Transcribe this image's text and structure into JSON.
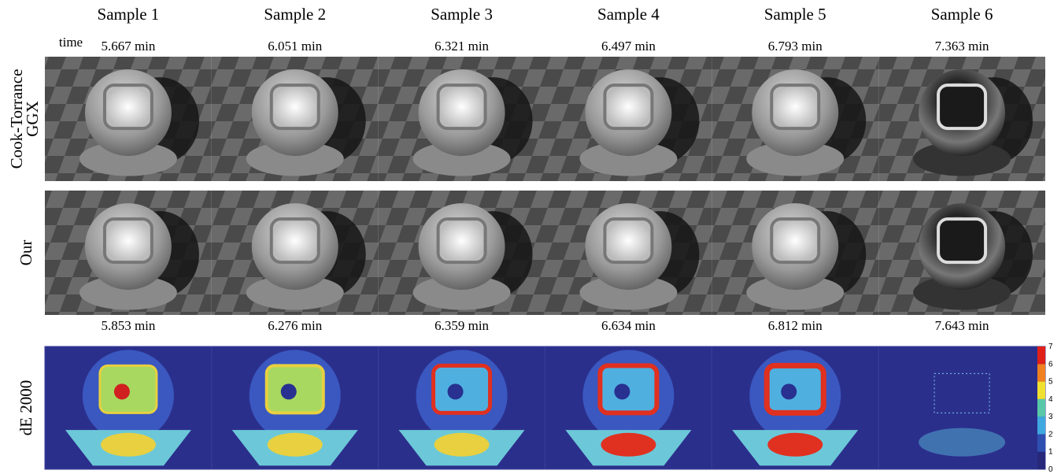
{
  "time_label": "time",
  "columns": [
    {
      "sample": "Sample 1",
      "time_ggx": "5.667 min",
      "time_our": "5.853 min"
    },
    {
      "sample": "Sample 2",
      "time_ggx": "6.051 min",
      "time_our": "6.276 min"
    },
    {
      "sample": "Sample 3",
      "time_ggx": "6.321 min",
      "time_our": "6.359 min"
    },
    {
      "sample": "Sample 4",
      "time_ggx": "6.497 min",
      "time_our": "6.634 min"
    },
    {
      "sample": "Sample 5",
      "time_ggx": "6.793 min",
      "time_our": "6.812 min"
    },
    {
      "sample": "Sample 6",
      "time_ggx": "7.363 min",
      "time_our": "7.643 min"
    }
  ],
  "rows": {
    "ggx": [
      "Cook-Torrance",
      "GGX"
    ],
    "our": "Our",
    "de": "dE 2000"
  },
  "colorbar": {
    "ticks": [
      0,
      1,
      2,
      3,
      4,
      5,
      6,
      7
    ]
  }
}
